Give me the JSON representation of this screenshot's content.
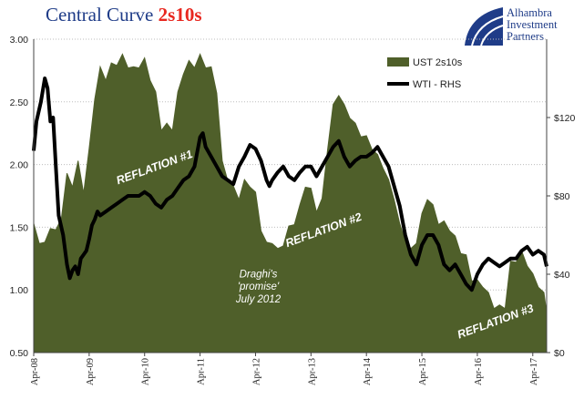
{
  "header": {
    "title_main": "Central Curve",
    "title_accent": "2s10s"
  },
  "logo": {
    "line1": "Alhambra",
    "line2": "Investment",
    "line3": "Partners"
  },
  "colors": {
    "area": "#4f5f2a",
    "line": "#000000",
    "title": "#1f3c88",
    "accent": "#e8271f"
  },
  "chart_data": {
    "type": "area",
    "title": "Central Curve 2s10s",
    "x_ticks": [
      "Apr-08",
      "Apr-09",
      "Apr-10",
      "Apr-11",
      "Apr-12",
      "Apr-13",
      "Apr-14",
      "Apr-15",
      "Apr-16",
      "Apr-17"
    ],
    "x_range": [
      2008.25,
      2017.5
    ],
    "y_left": {
      "ticks": [
        "0.50",
        "1.00",
        "1.50",
        "2.00",
        "2.50",
        "3.00"
      ],
      "range": [
        0.5,
        3.0
      ]
    },
    "y_right": {
      "ticks": [
        "$0",
        "$40",
        "$80",
        "$120"
      ],
      "range": [
        0,
        160
      ]
    },
    "grid": true,
    "legend_position": "top-right",
    "series": [
      {
        "name": "UST 2s10s",
        "kind": "area",
        "axis": "left",
        "x": [
          2008.25,
          2008.35,
          2008.45,
          2008.55,
          2008.65,
          2008.75,
          2008.85,
          2008.95,
          2009.05,
          2009.15,
          2009.25,
          2009.35,
          2009.45,
          2009.55,
          2009.65,
          2009.75,
          2009.85,
          2009.95,
          2010.05,
          2010.15,
          2010.25,
          2010.35,
          2010.45,
          2010.55,
          2010.65,
          2010.75,
          2010.85,
          2010.95,
          2011.05,
          2011.15,
          2011.25,
          2011.35,
          2011.45,
          2011.55,
          2011.65,
          2011.75,
          2011.85,
          2011.95,
          2012.05,
          2012.15,
          2012.25,
          2012.35,
          2012.45,
          2012.55,
          2012.65,
          2012.75,
          2012.85,
          2012.95,
          2013.05,
          2013.15,
          2013.25,
          2013.35,
          2013.45,
          2013.55,
          2013.65,
          2013.75,
          2013.85,
          2013.95,
          2014.05,
          2014.15,
          2014.25,
          2014.35,
          2014.45,
          2014.55,
          2014.65,
          2014.75,
          2014.85,
          2014.95,
          2015.05,
          2015.15,
          2015.25,
          2015.35,
          2015.45,
          2015.55,
          2015.65,
          2015.75,
          2015.85,
          2015.95,
          2016.05,
          2016.15,
          2016.25,
          2016.35,
          2016.45,
          2016.55,
          2016.65,
          2016.75,
          2016.85,
          2016.95,
          2017.05,
          2017.15,
          2017.25,
          2017.35,
          2017.45,
          2017.5
        ],
        "y": [
          1.5,
          1.4,
          1.35,
          1.52,
          1.45,
          1.6,
          1.9,
          1.85,
          2.0,
          1.8,
          2.1,
          2.55,
          2.75,
          2.7,
          2.78,
          2.82,
          2.85,
          2.8,
          2.75,
          2.8,
          2.82,
          2.7,
          2.55,
          2.3,
          2.3,
          2.3,
          2.55,
          2.75,
          2.8,
          2.8,
          2.85,
          2.8,
          2.75,
          2.6,
          2.0,
          1.9,
          1.8,
          1.75,
          1.85,
          1.85,
          1.75,
          1.5,
          1.35,
          1.4,
          1.3,
          1.38,
          1.48,
          1.55,
          1.65,
          1.85,
          1.78,
          1.65,
          1.7,
          2.15,
          2.45,
          2.58,
          2.45,
          2.4,
          2.3,
          2.25,
          2.2,
          2.15,
          2.05,
          2.0,
          1.85,
          1.75,
          1.5,
          1.42,
          1.3,
          1.4,
          1.58,
          1.75,
          1.65,
          1.55,
          1.52,
          1.5,
          1.4,
          1.32,
          1.25,
          1.1,
          1.05,
          1.05,
          0.95,
          0.88,
          0.85,
          0.88,
          1.2,
          1.25,
          1.28,
          1.22,
          1.1,
          1.05,
          0.95,
          0.85
        ]
      },
      {
        "name": "WTI - RHS",
        "kind": "line",
        "axis": "right",
        "x": [
          2008.25,
          2008.3,
          2008.38,
          2008.45,
          2008.5,
          2008.55,
          2008.6,
          2008.65,
          2008.7,
          2008.78,
          2008.85,
          2008.9,
          2008.95,
          2009.0,
          2009.05,
          2009.1,
          2009.15,
          2009.2,
          2009.25,
          2009.3,
          2009.35,
          2009.4,
          2009.45,
          2009.55,
          2009.65,
          2009.75,
          2009.85,
          2009.95,
          2010.05,
          2010.15,
          2010.25,
          2010.35,
          2010.45,
          2010.55,
          2010.65,
          2010.75,
          2010.85,
          2010.95,
          2011.05,
          2011.15,
          2011.25,
          2011.3,
          2011.35,
          2011.45,
          2011.55,
          2011.65,
          2011.75,
          2011.85,
          2011.95,
          2012.05,
          2012.15,
          2012.25,
          2012.35,
          2012.45,
          2012.5,
          2012.55,
          2012.65,
          2012.75,
          2012.85,
          2012.95,
          2013.05,
          2013.15,
          2013.25,
          2013.35,
          2013.45,
          2013.55,
          2013.65,
          2013.75,
          2013.85,
          2013.95,
          2014.05,
          2014.15,
          2014.25,
          2014.35,
          2014.45,
          2014.55,
          2014.65,
          2014.75,
          2014.85,
          2014.95,
          2015.05,
          2015.15,
          2015.25,
          2015.35,
          2015.45,
          2015.55,
          2015.65,
          2015.75,
          2015.85,
          2015.95,
          2016.05,
          2016.15,
          2016.25,
          2016.35,
          2016.45,
          2016.55,
          2016.65,
          2016.75,
          2016.85,
          2016.95,
          2017.05,
          2017.15,
          2017.25,
          2017.35,
          2017.45,
          2017.5
        ],
        "y": [
          103,
          118,
          128,
          140,
          135,
          118,
          120,
          95,
          70,
          60,
          45,
          38,
          42,
          44,
          40,
          48,
          50,
          52,
          58,
          65,
          68,
          72,
          70,
          72,
          74,
          76,
          78,
          80,
          80,
          80,
          82,
          80,
          76,
          74,
          78,
          80,
          84,
          88,
          90,
          95,
          110,
          112,
          105,
          100,
          95,
          90,
          88,
          86,
          95,
          100,
          106,
          104,
          98,
          88,
          85,
          88,
          92,
          95,
          90,
          88,
          92,
          95,
          95,
          90,
          95,
          100,
          105,
          108,
          100,
          95,
          98,
          100,
          100,
          102,
          105,
          100,
          95,
          85,
          75,
          60,
          50,
          45,
          55,
          60,
          60,
          55,
          45,
          42,
          45,
          40,
          35,
          32,
          40,
          45,
          48,
          46,
          44,
          46,
          48,
          48,
          52,
          54,
          50,
          52,
          50,
          44
        ]
      }
    ],
    "annotations": [
      {
        "text": "REFLATION #1",
        "x": 2010.45,
        "y": 1.95
      },
      {
        "text": "REFLATION #2",
        "x": 2013.5,
        "y": 1.45
      },
      {
        "text": "REFLATION #3",
        "x": 2016.6,
        "y": 0.72
      },
      {
        "text": "Draghi's",
        "x": 2012.3,
        "y": 1.1
      },
      {
        "text": "'promise'",
        "x": 2012.3,
        "y": 1.0
      },
      {
        "text": "July 2012",
        "x": 2012.3,
        "y": 0.9
      }
    ]
  }
}
